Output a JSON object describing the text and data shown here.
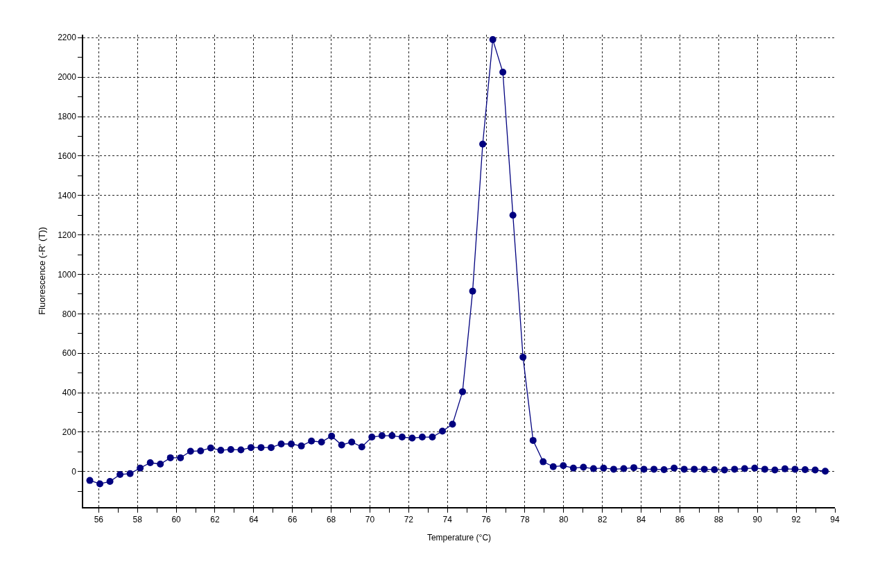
{
  "chart_data": {
    "type": "line",
    "xlabel": "Temperature (°C)",
    "ylabel": "Fluorescence (-R' (T))",
    "x": [
      55.54,
      56.06,
      56.58,
      57.1,
      57.62,
      58.14,
      58.66,
      59.18,
      59.7,
      60.22,
      60.74,
      61.26,
      61.78,
      62.3,
      62.82,
      63.34,
      63.86,
      64.38,
      64.9,
      65.42,
      65.94,
      66.46,
      66.98,
      67.5,
      68.02,
      68.54,
      69.06,
      69.58,
      70.1,
      70.62,
      71.14,
      71.66,
      72.18,
      72.7,
      73.22,
      73.74,
      74.26,
      74.78,
      75.3,
      75.82,
      76.34,
      76.86,
      77.38,
      77.9,
      78.42,
      78.94,
      79.46,
      79.98,
      80.5,
      81.02,
      81.54,
      82.06,
      82.58,
      83.1,
      83.62,
      84.14,
      84.66,
      85.18,
      85.7,
      86.22,
      86.74,
      87.26,
      87.78,
      88.3,
      88.82,
      89.34,
      89.86,
      90.38,
      90.9,
      91.42,
      91.94,
      92.46,
      92.98,
      93.5
    ],
    "series": [
      {
        "color": "#00007f",
        "values": [
          -45,
          -62,
          -50,
          -15,
          -10,
          18,
          45,
          38,
          70,
          70,
          103,
          105,
          120,
          108,
          112,
          110,
          122,
          122,
          122,
          140,
          140,
          130,
          155,
          150,
          180,
          135,
          150,
          125,
          175,
          182,
          182,
          175,
          170,
          175,
          175,
          205,
          240,
          405,
          915,
          1660,
          2190,
          2025,
          1300,
          580,
          158,
          50,
          25,
          30,
          18,
          22,
          15,
          18,
          12,
          15,
          20,
          12,
          12,
          10,
          18,
          12,
          12,
          12,
          10,
          8,
          12,
          15,
          18,
          12,
          8,
          14,
          12,
          10,
          8,
          2
        ]
      }
    ],
    "xlim": [
      55.2,
      94
    ],
    "xticks": [
      56,
      58,
      60,
      62,
      64,
      66,
      68,
      70,
      72,
      74,
      76,
      78,
      80,
      82,
      84,
      86,
      88,
      90,
      92,
      94
    ],
    "ylim": [
      -180,
      2215
    ],
    "yticks": [
      0,
      200,
      400,
      600,
      800,
      1000,
      1200,
      1400,
      1600,
      1800,
      2000,
      2200
    ],
    "grid": true,
    "marker": "circle",
    "line_style": "solid"
  }
}
